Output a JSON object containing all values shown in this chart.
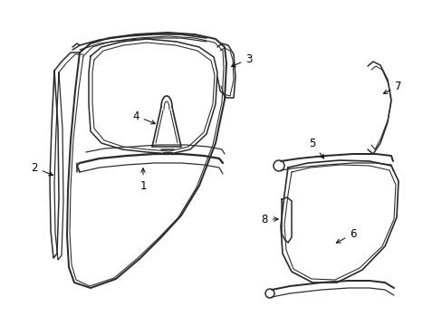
{
  "background_color": "#ffffff",
  "line_color": "#2a2a2a",
  "line_width": 1.1,
  "figsize": [
    4.89,
    3.6
  ],
  "dpi": 100
}
